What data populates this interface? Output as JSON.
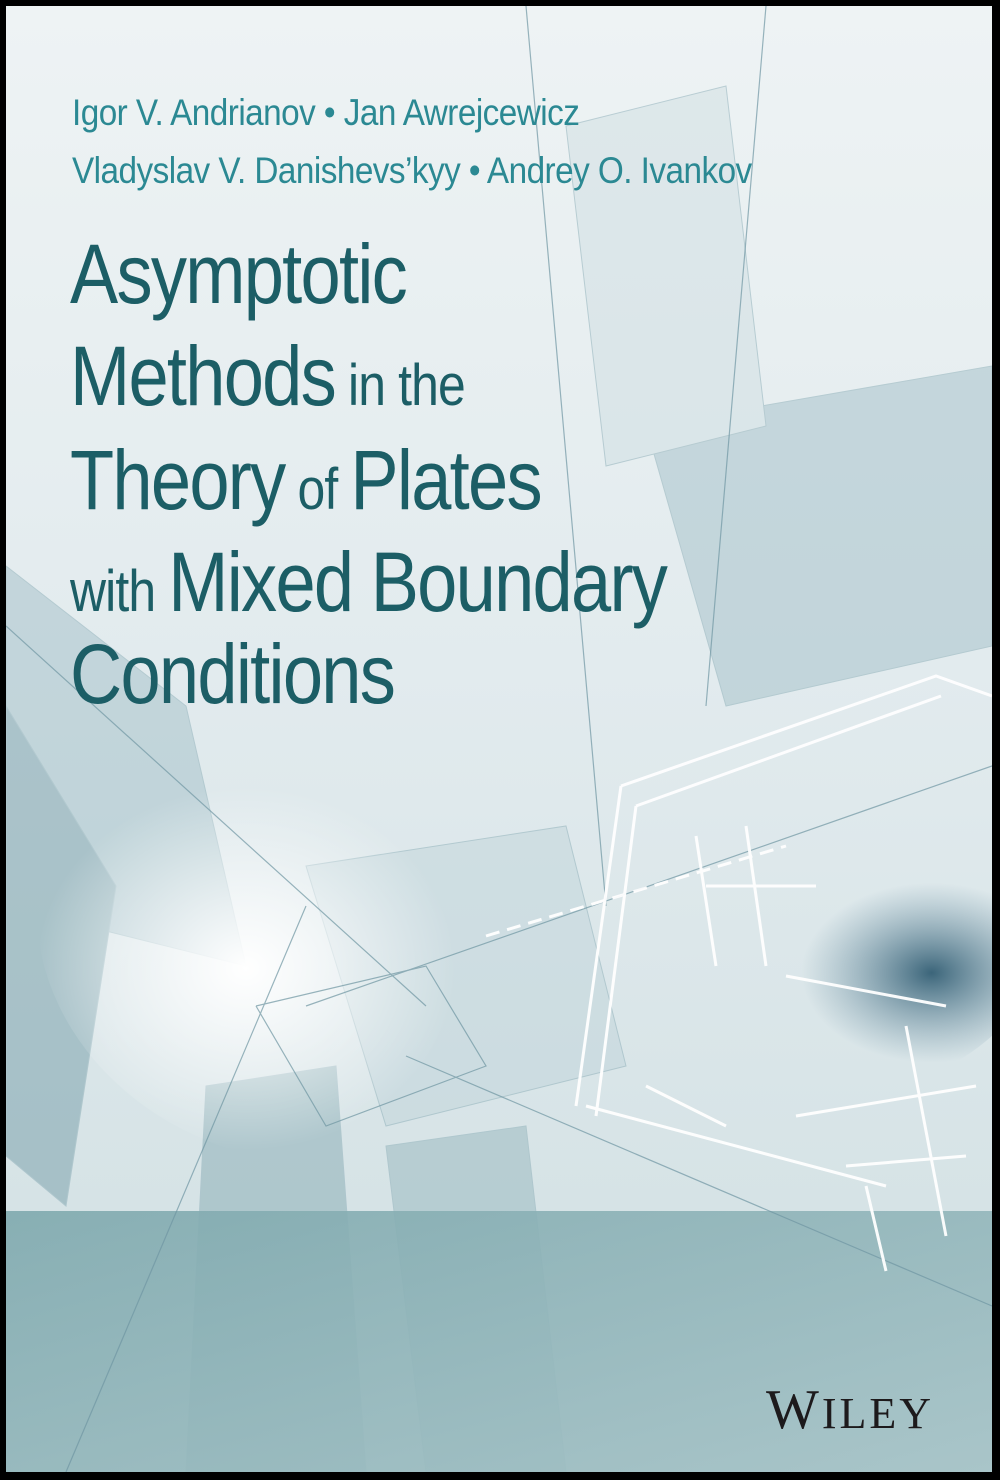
{
  "authors": {
    "line1": "Igor V. Andrianov • Jan Awrejcewicz",
    "line2": "Vladyslav V. Danishevs’kyy • Andrey O. Ivankov"
  },
  "title": {
    "line1": "Asymptotic",
    "line2_big": "Methods",
    "line2_small": " in the",
    "line3_big1": "Theory",
    "line3_small": " of ",
    "line3_big2": "Plates",
    "line4_small": "with ",
    "line4_big": "Mixed Boundary",
    "line5": "Conditions"
  },
  "publisher": {
    "first": "W",
    "rest": "ILEY"
  },
  "colors": {
    "title": "#1c5e66",
    "authors": "#2b8993",
    "band": "#86aeb3",
    "background": "#e9eff1"
  }
}
